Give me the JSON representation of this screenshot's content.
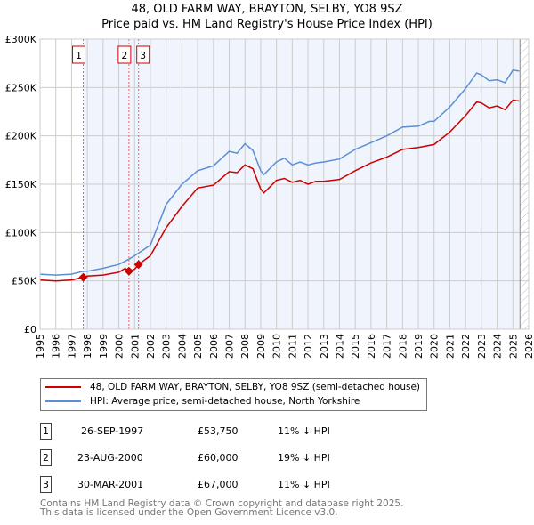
{
  "title": {
    "line1": "48, OLD FARM WAY, BRAYTON, SELBY, YO8 9SZ",
    "line2": "Price paid vs. HM Land Registry's House Price Index (HPI)"
  },
  "colors": {
    "price_paid": "#cc0000",
    "hpi": "#5b8fd4",
    "shade": "#f0f4fc",
    "grid": "#cccccc"
  },
  "chart_data": {
    "type": "line",
    "title": "48, OLD FARM WAY, BRAYTON, SELBY, YO8 9SZ — Price paid vs. HM Land Registry's House Price Index (HPI)",
    "xlabel": "",
    "ylabel": "",
    "xlim": [
      1995,
      2026
    ],
    "ylim": [
      0,
      300000
    ],
    "x_ticks": [
      "1995",
      "1996",
      "1997",
      "1998",
      "1999",
      "2000",
      "2001",
      "2002",
      "2003",
      "2004",
      "2005",
      "2006",
      "2007",
      "2008",
      "2009",
      "2010",
      "2011",
      "2012",
      "2013",
      "2014",
      "2015",
      "2016",
      "2017",
      "2018",
      "2019",
      "2020",
      "2021",
      "2022",
      "2023",
      "2024",
      "2025",
      "2026"
    ],
    "y_ticks": [
      {
        "v": 0,
        "label": "£0"
      },
      {
        "v": 50000,
        "label": "£50K"
      },
      {
        "v": 100000,
        "label": "£100K"
      },
      {
        "v": 150000,
        "label": "£150K"
      },
      {
        "v": 200000,
        "label": "£200K"
      },
      {
        "v": 250000,
        "label": "£250K"
      },
      {
        "v": 300000,
        "label": "£300K"
      }
    ],
    "grid": true,
    "shaded_from": 1997.74,
    "forecast_hatch_from": 2025.45,
    "series": [
      {
        "name": "48, OLD FARM WAY, BRAYTON, SELBY, YO8 9SZ (semi-detached house)",
        "color": "#cc0000",
        "x": [
          1995,
          1996,
          1997,
          1997.74,
          1998,
          1999,
          2000,
          2000.4,
          2000.64,
          2001,
          2001.25,
          2002,
          2003,
          2004,
          2005,
          2006,
          2007,
          2007.5,
          2008,
          2008.5,
          2009,
          2009.2,
          2010,
          2010.5,
          2011,
          2011.5,
          2012,
          2012.5,
          2013,
          2014,
          2015,
          2016,
          2017,
          2018,
          2019,
          2020,
          2021,
          2022,
          2022.7,
          2023,
          2023.5,
          2024,
          2024.5,
          2025,
          2025.4
        ],
        "y": [
          51000,
          50000,
          51000,
          53750,
          55000,
          56000,
          59000,
          63000,
          60000,
          62000,
          67000,
          76000,
          105000,
          127000,
          146000,
          149000,
          163000,
          162000,
          170000,
          166000,
          145000,
          141000,
          154000,
          156000,
          152000,
          154000,
          150000,
          153000,
          153000,
          155000,
          164000,
          172000,
          178000,
          186000,
          188000,
          191000,
          204000,
          221000,
          235000,
          234000,
          229000,
          231000,
          227000,
          237000,
          236000
        ]
      },
      {
        "name": "HPI: Average price, semi-detached house, North Yorkshire",
        "color": "#5b8fd4",
        "x": [
          1995,
          1996,
          1997,
          1997.74,
          1998,
          1999,
          2000,
          2000.7,
          2001,
          2002,
          2003,
          2004,
          2005,
          2006,
          2007,
          2007.5,
          2008,
          2008.5,
          2009,
          2009.2,
          2010,
          2010.5,
          2011,
          2011.5,
          2012,
          2012.5,
          2013,
          2014,
          2015,
          2016,
          2017,
          2018,
          2019,
          2019.7,
          2020,
          2021,
          2022,
          2022.7,
          2023,
          2023.5,
          2024,
          2024.5,
          2025,
          2025.4
        ],
        "y": [
          57000,
          56000,
          57000,
          60000,
          60000,
          63000,
          67000,
          73000,
          76000,
          87000,
          129000,
          150000,
          164000,
          169000,
          184000,
          182000,
          192000,
          185000,
          164000,
          160000,
          173000,
          177000,
          170000,
          173000,
          170000,
          172000,
          173000,
          176000,
          186000,
          193000,
          200000,
          209000,
          210000,
          215000,
          215000,
          230000,
          249000,
          265000,
          263000,
          257000,
          258000,
          255000,
          268000,
          267000
        ]
      }
    ],
    "sales": [
      {
        "label": "1",
        "x": 1997.74,
        "y": 53750
      },
      {
        "label": "2",
        "x": 2000.64,
        "y": 60000
      },
      {
        "label": "3",
        "x": 2001.25,
        "y": 67000
      }
    ]
  },
  "legend": {
    "price_paid": "48, OLD FARM WAY, BRAYTON, SELBY, YO8 9SZ (semi-detached house)",
    "hpi": "HPI: Average price, semi-detached house, North Yorkshire"
  },
  "table": [
    {
      "num": "1",
      "date": "26-SEP-1997",
      "price": "£53,750",
      "hpi": "11% ↓ HPI"
    },
    {
      "num": "2",
      "date": "23-AUG-2000",
      "price": "£60,000",
      "hpi": "19% ↓ HPI"
    },
    {
      "num": "3",
      "date": "30-MAR-2001",
      "price": "£67,000",
      "hpi": "11% ↓ HPI"
    }
  ],
  "footer": {
    "line1": "Contains HM Land Registry data © Crown copyright and database right 2025.",
    "line2": "This data is licensed under the Open Government Licence v3.0."
  }
}
